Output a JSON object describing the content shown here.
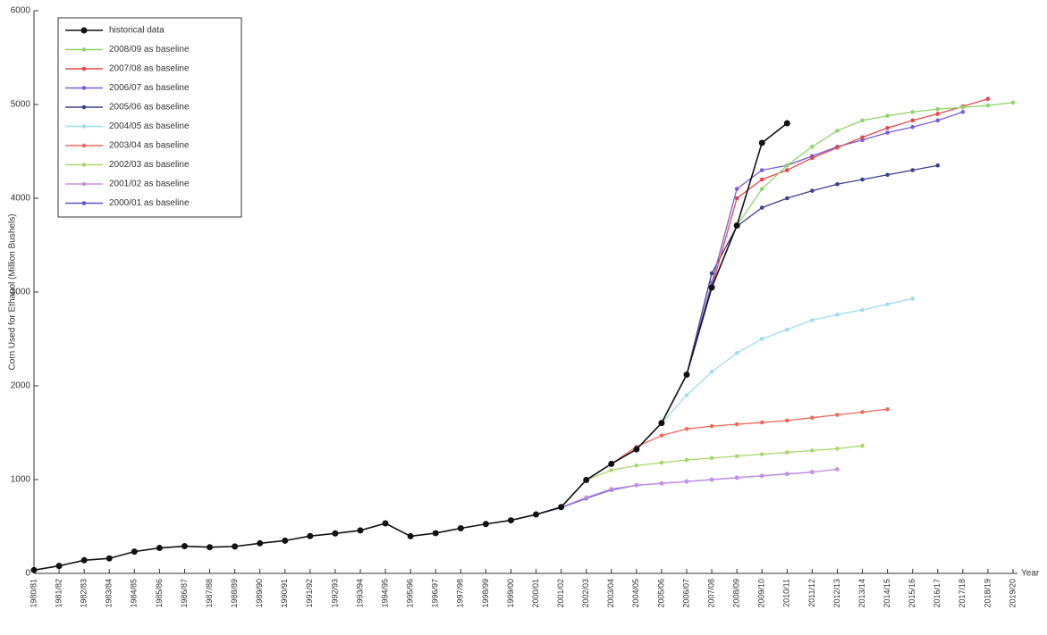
{
  "chart_data": {
    "type": "line",
    "x_label": "Year",
    "y_label": "Corn Used for Ethanol (Million Bushels)",
    "categories": [
      "1980/81",
      "1981/82",
      "1982/83",
      "1983/84",
      "1984/85",
      "1985/86",
      "1986/87",
      "1987/88",
      "1988/89",
      "1989/90",
      "1990/91",
      "1991/92",
      "1992/93",
      "1993/94",
      "1994/95",
      "1995/96",
      "1996/97",
      "1997/98",
      "1998/99",
      "1999/00",
      "2000/01",
      "2001/02",
      "2002/03",
      "2003/04",
      "2004/05",
      "2005/06",
      "2006/07",
      "2007/08",
      "2008/09",
      "2009/10",
      "2010/11",
      "2011/12",
      "2012/13",
      "2013/14",
      "2014/15",
      "2015/16",
      "2016/17",
      "2017/18",
      "2018/19",
      "2019/20"
    ],
    "ylim": [
      0,
      6000
    ],
    "yticks": [
      0,
      1000,
      2000,
      3000,
      4000,
      5000,
      6000
    ],
    "legend": "upper left",
    "series": [
      {
        "name": "historical data",
        "color": "#111111",
        "values": [
          35,
          80,
          140,
          160,
          232,
          271,
          290,
          279,
          287,
          321,
          349,
          398,
          426,
          458,
          533,
          396,
          429,
          481,
          526,
          566,
          628,
          707,
          996,
          1168,
          1323,
          1603,
          2119,
          3049,
          3709,
          4591,
          4800,
          null,
          null,
          null,
          null,
          null,
          null,
          null,
          null,
          null
        ]
      },
      {
        "name": "2008/09 as baseline",
        "color": "#8fd46a",
        "values": [
          null,
          null,
          null,
          null,
          null,
          null,
          null,
          null,
          null,
          null,
          null,
          null,
          null,
          null,
          null,
          null,
          null,
          null,
          null,
          null,
          null,
          null,
          null,
          null,
          null,
          null,
          null,
          null,
          3709,
          4100,
          4350,
          4550,
          4720,
          4830,
          4880,
          4920,
          4950,
          4970,
          4990,
          5020
        ]
      },
      {
        "name": "2007/08 as baseline",
        "color": "#e0474c",
        "values": [
          null,
          null,
          null,
          null,
          null,
          null,
          null,
          null,
          null,
          null,
          null,
          null,
          null,
          null,
          null,
          null,
          null,
          null,
          null,
          null,
          null,
          null,
          null,
          null,
          null,
          null,
          null,
          3049,
          4000,
          4200,
          4300,
          4430,
          4540,
          4650,
          4750,
          4830,
          4900,
          4980,
          5060,
          null
        ]
      },
      {
        "name": "2006/07 as baseline",
        "color": "#7b5cd6",
        "values": [
          null,
          null,
          null,
          null,
          null,
          null,
          null,
          null,
          null,
          null,
          null,
          null,
          null,
          null,
          null,
          null,
          null,
          null,
          null,
          null,
          null,
          null,
          null,
          null,
          null,
          null,
          2119,
          3100,
          4100,
          4300,
          4350,
          4450,
          4550,
          4620,
          4700,
          4760,
          4830,
          4920,
          null,
          null
        ]
      },
      {
        "name": "2005/06 as baseline",
        "color": "#3a3f8f",
        "values": [
          null,
          null,
          null,
          null,
          null,
          null,
          null,
          null,
          null,
          null,
          null,
          null,
          null,
          null,
          null,
          null,
          null,
          null,
          null,
          null,
          null,
          null,
          null,
          null,
          null,
          1603,
          2119,
          3200,
          3700,
          3900,
          4000,
          4080,
          4150,
          4200,
          4250,
          4300,
          4350,
          null,
          null,
          null
        ]
      },
      {
        "name": "2004/05 as baseline",
        "color": "#9fdcf0",
        "values": [
          null,
          null,
          null,
          null,
          null,
          null,
          null,
          null,
          null,
          null,
          null,
          null,
          null,
          null,
          null,
          null,
          null,
          null,
          null,
          null,
          null,
          null,
          null,
          null,
          1323,
          1600,
          1900,
          2150,
          2350,
          2500,
          2600,
          2700,
          2760,
          2810,
          2870,
          2930,
          null,
          null,
          null,
          null
        ]
      },
      {
        "name": "2003/04 as baseline",
        "color": "#f06a5a",
        "values": [
          null,
          null,
          null,
          null,
          null,
          null,
          null,
          null,
          null,
          null,
          null,
          null,
          null,
          null,
          null,
          null,
          null,
          null,
          null,
          null,
          null,
          null,
          null,
          1168,
          1350,
          1470,
          1540,
          1570,
          1590,
          1610,
          1630,
          1660,
          1690,
          1720,
          1750,
          null,
          null,
          null,
          null,
          null
        ]
      },
      {
        "name": "2002/03 as baseline",
        "color": "#a8d86a",
        "values": [
          null,
          null,
          null,
          null,
          null,
          null,
          null,
          null,
          null,
          null,
          null,
          null,
          null,
          null,
          null,
          null,
          null,
          null,
          null,
          null,
          null,
          null,
          996,
          1100,
          1150,
          1180,
          1210,
          1230,
          1250,
          1270,
          1290,
          1310,
          1330,
          1360,
          null,
          null,
          null,
          null,
          null,
          null
        ]
      },
      {
        "name": "2001/02 as baseline",
        "color": "#c58ee8",
        "values": [
          null,
          null,
          null,
          null,
          null,
          null,
          null,
          null,
          null,
          null,
          null,
          null,
          null,
          null,
          null,
          null,
          null,
          null,
          null,
          null,
          null,
          707,
          810,
          900,
          940,
          960,
          980,
          1000,
          1020,
          1040,
          1060,
          1080,
          1110,
          null,
          null,
          null,
          null,
          null,
          null,
          null
        ]
      },
      {
        "name": "2000/01 as baseline",
        "color": "#5a55c8",
        "values": [
          null,
          null,
          null,
          null,
          null,
          null,
          null,
          null,
          null,
          null,
          null,
          null,
          null,
          null,
          null,
          null,
          null,
          null,
          null,
          null,
          628,
          700,
          800,
          890,
          940,
          960,
          980,
          1000,
          1020,
          1040,
          1060,
          1080,
          null,
          null,
          null,
          null,
          null,
          null,
          null,
          null
        ]
      }
    ]
  }
}
